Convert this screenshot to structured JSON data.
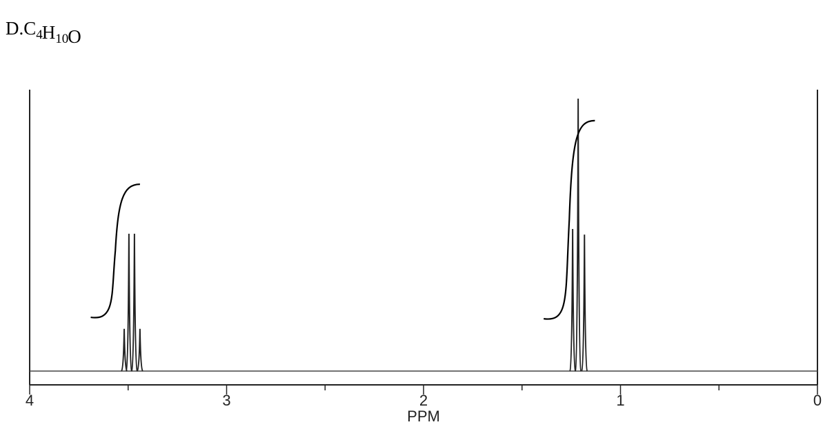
{
  "chart_data": {
    "type": "nmr",
    "title": {
      "prefix": "D.",
      "formula": [
        [
          "C",
          "4"
        ],
        [
          "H",
          "10"
        ],
        [
          "O"
        ]
      ]
    },
    "x_label": "PPM",
    "xlim": [
      4,
      0
    ],
    "xticks": [
      4,
      3,
      2,
      1,
      0
    ],
    "xminorticks": [
      3.5,
      2.5,
      1.5,
      0.5
    ],
    "ylim": [
      0,
      100
    ],
    "x": [
      3.52,
      3.496,
      3.468,
      3.44,
      1.243,
      1.215,
      1.183
    ],
    "values": [
      15,
      48.8,
      48.8,
      15,
      50.5,
      96.8,
      48.5
    ],
    "integrals": [
      {
        "x": [
          3.69,
          3.44
        ],
        "y": [
          19.1,
          66.4
        ]
      },
      {
        "x": [
          1.39,
          1.13
        ],
        "y": [
          18.6,
          89.0
        ]
      }
    ],
    "color": "#222222"
  }
}
